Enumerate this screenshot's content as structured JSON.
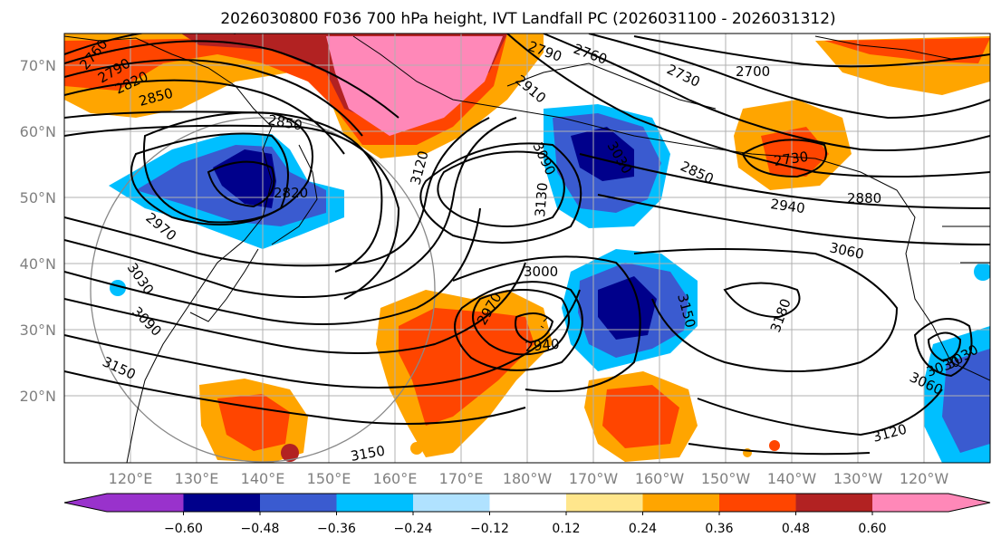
{
  "title": "2026030800 F036 700 hPa height, IVT Landfall PC (2026031100 - 2026031312)",
  "map": {
    "lat_labels": [
      "70°N",
      "60°N",
      "50°N",
      "40°N",
      "30°N",
      "20°N"
    ],
    "lat_values": [
      70,
      60,
      50,
      40,
      30,
      20
    ],
    "lon_labels": [
      "120°E",
      "130°E",
      "140°E",
      "150°E",
      "160°E",
      "170°E",
      "180°W",
      "170°W",
      "160°W",
      "150°W",
      "140°W",
      "130°W",
      "120°W"
    ],
    "lon_values": [
      120,
      130,
      140,
      150,
      160,
      170,
      180,
      190,
      200,
      210,
      220,
      230,
      240
    ],
    "lat_range": [
      10,
      75
    ],
    "lon_range": [
      113,
      253
    ],
    "contour_labels": [
      "2760",
      "2790",
      "2820",
      "2850",
      "2850",
      "2820",
      "2970",
      "3030",
      "3090",
      "3150",
      "3150",
      "3120",
      "3130",
      "3090",
      "3030",
      "2790",
      "2760",
      "2730",
      "2700",
      "2910",
      "2730",
      "2850",
      "2880",
      "2940",
      "3060",
      "3000",
      "2970",
      "2940",
      "3150",
      "3180",
      "3120",
      "3060",
      "3030",
      "3030"
    ],
    "anomaly_units": "IVT Landfall PC"
  },
  "colorbar": {
    "tick_labels": [
      "−0.60",
      "−0.48",
      "−0.36",
      "−0.24",
      "−0.12",
      "0.12",
      "0.24",
      "0.36",
      "0.48",
      "0.60"
    ],
    "levels": [
      -0.6,
      -0.48,
      -0.36,
      -0.24,
      -0.12,
      0.12,
      0.24,
      0.36,
      0.48,
      0.6
    ],
    "colors": [
      "#9932cc",
      "#00008b",
      "#3a5bd0",
      "#00bfff",
      "#b0e2ff",
      "#ffffff",
      "#ffe68c",
      "#ffa500",
      "#ff4500",
      "#b22222",
      "#ff88b8"
    ]
  },
  "colors": {
    "land_line": "#000000",
    "contour": "#000000",
    "grid": "#b0b0b0",
    "axis_label": "#808080"
  }
}
